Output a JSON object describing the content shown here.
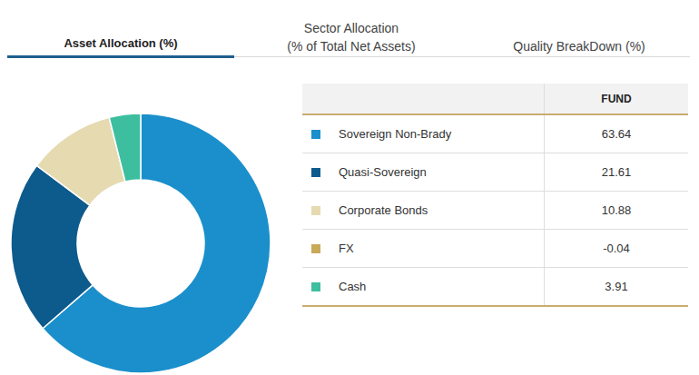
{
  "chart_data": {
    "type": "pie",
    "tabs": [
      "Asset Allocation (%)",
      "Sector Allocation\n(% of Total Net Assets)",
      "Quality BreakDown (%)"
    ],
    "column_header": "FUND",
    "categories": [
      "Sovereign Non-Brady",
      "Quasi-Sovereign",
      "Corporate Bonds",
      "FX",
      "Cash"
    ],
    "values": [
      63.64,
      21.61,
      10.88,
      -0.04,
      3.91
    ],
    "colors": [
      "#1a8fcb",
      "#0d5a8c",
      "#e6dab1",
      "#c9a95a",
      "#3dbf9f"
    ]
  }
}
